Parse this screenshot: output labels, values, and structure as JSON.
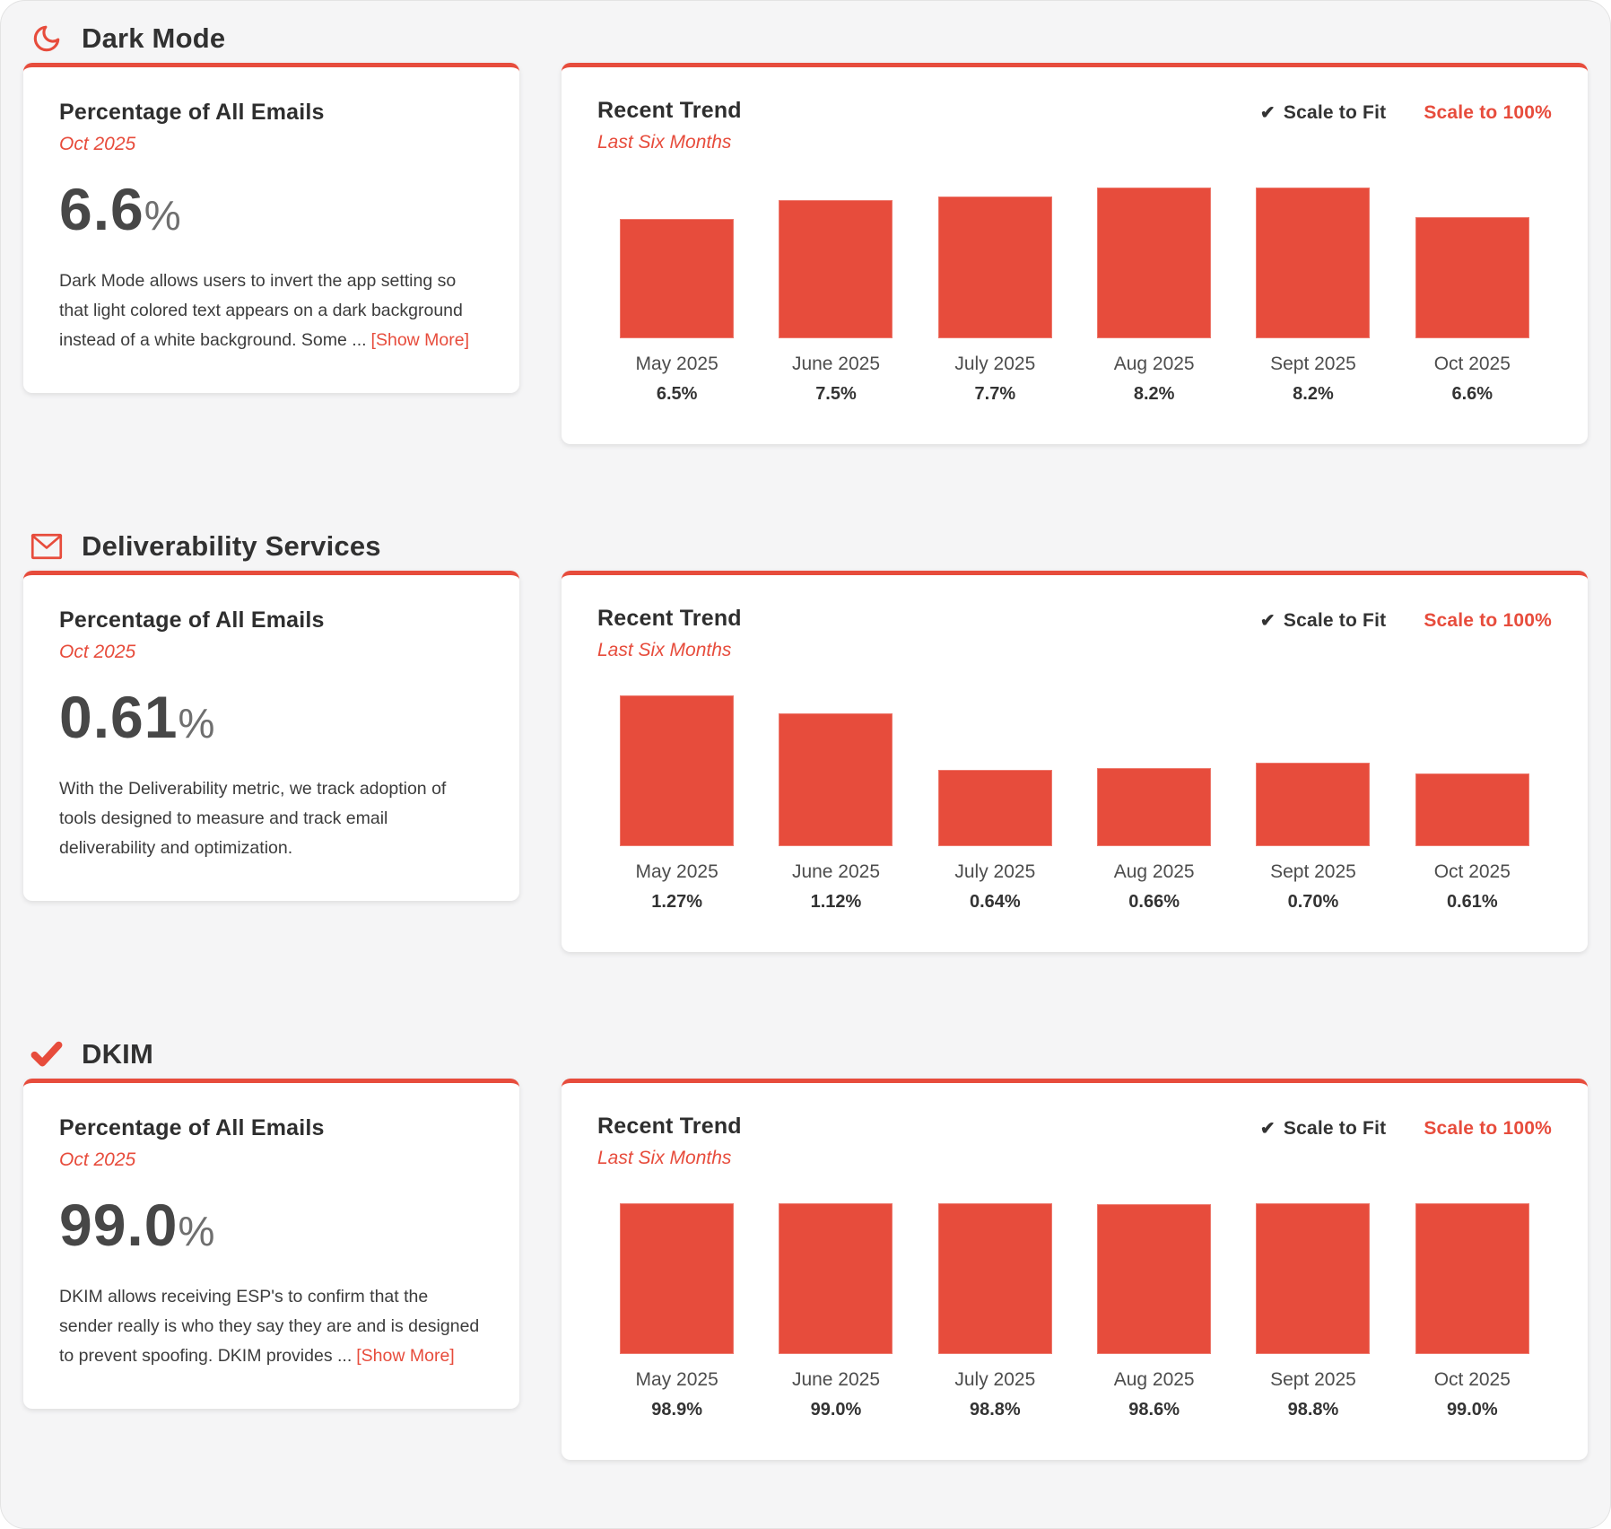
{
  "page": {
    "background": "#f5f5f6",
    "card_background": "#ffffff"
  },
  "accent_color": "#e74c3c",
  "icons": {
    "moon-icon": "crescent-moon",
    "mail-icon": "envelope",
    "check-icon": "checkmark",
    "scale-fit-check-icon": "✔"
  },
  "scale_controls": {
    "check_icon": "✔",
    "fit_label": "Scale to Fit",
    "hundred_label": "Scale to 100%"
  },
  "sections": [
    {
      "title": "Dark Mode",
      "icon": "moon-icon",
      "stat": {
        "heading": "Percentage of All Emails",
        "period": "Oct 2025",
        "value": "6.6",
        "unit": "%",
        "description": "Dark Mode allows users to invert the app setting so that light colored text appears on a dark background instead of a white background. Some ...",
        "show_more_label": "[Show More]"
      },
      "trend": {
        "heading": "Recent Trend",
        "subheading": "Last Six Months"
      }
    },
    {
      "title": "Deliverability Services",
      "icon": "mail-icon",
      "stat": {
        "heading": "Percentage of All Emails",
        "period": "Oct 2025",
        "value": "0.61",
        "unit": "%",
        "description": "With the Deliverability metric, we track adoption of tools designed to measure and track email deliverability and optimization.",
        "show_more_label": ""
      },
      "trend": {
        "heading": "Recent Trend",
        "subheading": "Last Six Months"
      }
    },
    {
      "title": "DKIM",
      "icon": "check-icon",
      "stat": {
        "heading": "Percentage of All Emails",
        "period": "Oct 2025",
        "value": "99.0",
        "unit": "%",
        "description": "DKIM allows receiving ESP's to confirm that the sender really is who they say they are and is designed to prevent spoofing. DKIM provides ...",
        "show_more_label": "[Show More]"
      },
      "trend": {
        "heading": "Recent Trend",
        "subheading": "Last Six Months"
      }
    }
  ],
  "chart_data": [
    {
      "type": "bar",
      "title": "Recent Trend",
      "subtitle": "Last Six Months",
      "categories": [
        "May 2025",
        "June 2025",
        "July 2025",
        "Aug 2025",
        "Sept 2025",
        "Oct 2025"
      ],
      "values": [
        6.5,
        7.5,
        7.7,
        8.2,
        8.2,
        6.6
      ],
      "value_labels": [
        "6.5%",
        "7.5%",
        "7.7%",
        "8.2%",
        "8.2%",
        "6.6%"
      ],
      "ylim": [
        0,
        8.2
      ],
      "scale_mode": "Scale to Fit",
      "bar_color": "#e74c3c",
      "grid": false,
      "legend": "none"
    },
    {
      "type": "bar",
      "title": "Recent Trend",
      "subtitle": "Last Six Months",
      "categories": [
        "May 2025",
        "June 2025",
        "July 2025",
        "Aug 2025",
        "Sept 2025",
        "Oct 2025"
      ],
      "values": [
        1.27,
        1.12,
        0.64,
        0.66,
        0.7,
        0.61
      ],
      "value_labels": [
        "1.27%",
        "1.12%",
        "0.64%",
        "0.66%",
        "0.70%",
        "0.61%"
      ],
      "ylim": [
        0,
        1.27
      ],
      "scale_mode": "Scale to Fit",
      "bar_color": "#e74c3c",
      "grid": false,
      "legend": "none"
    },
    {
      "type": "bar",
      "title": "Recent Trend",
      "subtitle": "Last Six Months",
      "categories": [
        "May 2025",
        "June 2025",
        "July 2025",
        "Aug 2025",
        "Sept 2025",
        "Oct 2025"
      ],
      "values": [
        98.9,
        99.0,
        98.8,
        98.6,
        98.8,
        99.0
      ],
      "value_labels": [
        "98.9%",
        "99.0%",
        "98.8%",
        "98.6%",
        "98.8%",
        "99.0%"
      ],
      "ylim": [
        0,
        99.0
      ],
      "scale_mode": "Scale to Fit",
      "bar_color": "#e74c3c",
      "grid": false,
      "legend": "none"
    }
  ]
}
